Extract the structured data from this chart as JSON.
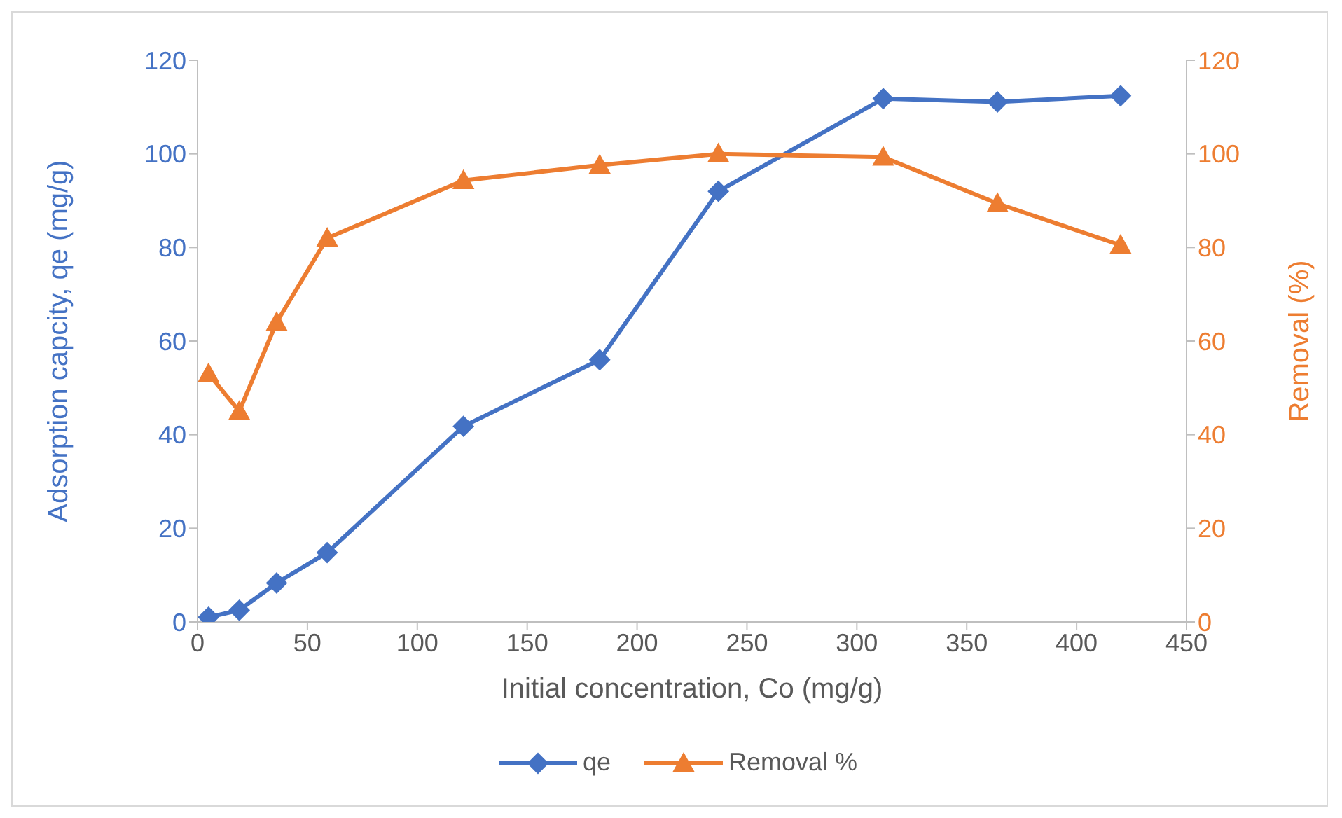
{
  "chart_data": {
    "type": "line",
    "xlabel": "Initial concentration, Co (mg/g)",
    "ylabel": "Adsorption capcity, qe (mg/g)",
    "y2label": "Removal (%)",
    "x": [
      5,
      19,
      36,
      59,
      121,
      183,
      237,
      312,
      364,
      420
    ],
    "series": [
      {
        "name": "qe",
        "color": "#4472c4",
        "marker": "diamond",
        "values": [
          1,
          2.5,
          8.3,
          14.8,
          41.8,
          56,
          92,
          111.8,
          111.1,
          112.4
        ]
      },
      {
        "name": "Removal %",
        "color": "#ed7d31",
        "marker": "triangle",
        "axis": "y2",
        "values": [
          53,
          45,
          64,
          82,
          94.3,
          97.6,
          100,
          99.3,
          89.4,
          80.5
        ]
      }
    ],
    "xlim": [
      0,
      450
    ],
    "xticks": [
      0,
      50,
      100,
      150,
      200,
      250,
      300,
      350,
      400,
      450
    ],
    "ylim": [
      0,
      120
    ],
    "yticks": [
      0,
      20,
      40,
      60,
      80,
      100,
      120
    ],
    "y2lim": [
      0,
      120
    ],
    "y2ticks": [
      0,
      20,
      40,
      60,
      80,
      100,
      120
    ],
    "legend": "bottom"
  }
}
